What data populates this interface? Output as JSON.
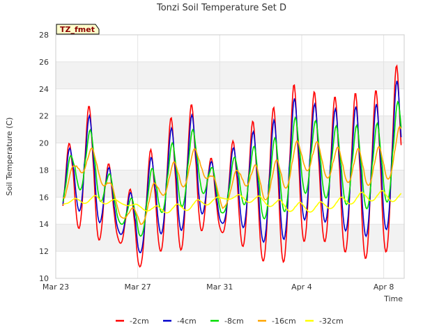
{
  "chart_data": {
    "type": "line",
    "title": "Tonzi Soil Temperature Set D",
    "xlabel": "Time",
    "ylabel": "Soil Temperature (C)",
    "badge": "TZ_fmet",
    "ylim": [
      10,
      28
    ],
    "yticks": [
      10,
      12,
      14,
      16,
      18,
      20,
      22,
      24,
      26,
      28
    ],
    "xlim_days": [
      0,
      17
    ],
    "xticks": [
      {
        "day": 0,
        "label": "Mar 23"
      },
      {
        "day": 4,
        "label": "Mar 27"
      },
      {
        "day": 8,
        "label": "Mar 31"
      },
      {
        "day": 12,
        "label": "Apr 4"
      },
      {
        "day": 16,
        "label": "Apr 8"
      }
    ],
    "grid": true,
    "legend_position": "bottom",
    "daily_extremes": [
      {
        "day": 0,
        "min_2cm": 13.6,
        "max_2cm": 15.2
      },
      {
        "day": 1,
        "min_2cm": 13.8,
        "max_2cm": 22.7
      },
      {
        "day": 2,
        "min_2cm": 12.8,
        "max_2cm": 22.8
      },
      {
        "day": 3,
        "min_2cm": 12.9,
        "max_2cm": 15.6
      },
      {
        "day": 4,
        "min_2cm": 10.7,
        "max_2cm": 17.2
      },
      {
        "day": 5,
        "min_2cm": 12.0,
        "max_2cm": 20.9
      },
      {
        "day": 6,
        "min_2cm": 11.9,
        "max_2cm": 22.5
      },
      {
        "day": 7,
        "min_2cm": 13.5,
        "max_2cm": 23.1
      },
      {
        "day": 8,
        "min_2cm": 13.5,
        "max_2cm": 16.1
      },
      {
        "day": 9,
        "min_2cm": 12.5,
        "max_2cm": 22.5
      },
      {
        "day": 10,
        "min_2cm": 11.3,
        "max_2cm": 21.1
      },
      {
        "day": 11,
        "min_2cm": 11.0,
        "max_2cm": 23.6
      },
      {
        "day": 12,
        "min_2cm": 12.7,
        "max_2cm": 24.8
      },
      {
        "day": 13,
        "min_2cm": 12.8,
        "max_2cm": 23.2
      },
      {
        "day": 14,
        "min_2cm": 12.0,
        "max_2cm": 23.6
      },
      {
        "day": 15,
        "min_2cm": 11.4,
        "max_2cm": 23.8
      },
      {
        "day": 16,
        "min_2cm": 11.8,
        "max_2cm": 24.0
      },
      {
        "day": 17,
        "min_2cm": 13.0,
        "max_2cm": 26.8
      }
    ],
    "series": [
      {
        "name": "-2cm",
        "color": "#ff0000"
      },
      {
        "name": "-4cm",
        "color": "#0000cc"
      },
      {
        "name": "-8cm",
        "color": "#00dd00"
      },
      {
        "name": "-16cm",
        "color": "#ffa500"
      },
      {
        "name": "-32cm",
        "color": "#ffff00"
      }
    ]
  }
}
